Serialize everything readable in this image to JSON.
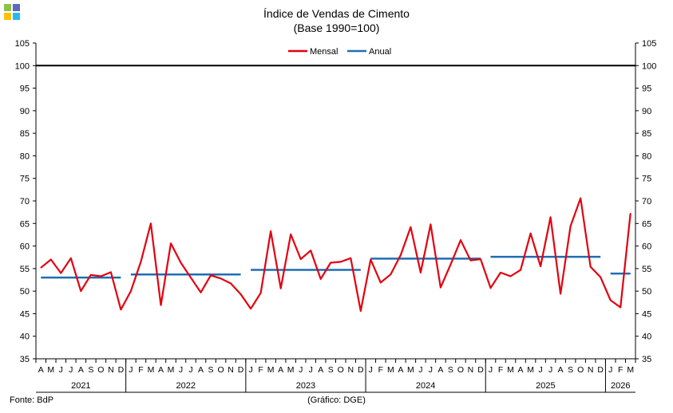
{
  "logo": {
    "colors": [
      "#8bc34a",
      "#5c6bc0",
      "#ffc107",
      "#29b6f6"
    ]
  },
  "colors": {
    "mensal": "#e3000f",
    "anual": "#1f6db3",
    "reference": "#000000",
    "axis": "#000000"
  },
  "chart_data": {
    "type": "line",
    "title": "Índice de Vendas de Cimento",
    "subtitle": "(Base 1990=100)",
    "source": "Fonte: BdP",
    "credit": "(Gráfico: DGE)",
    "legend_placement": "top-center",
    "grid": false,
    "ylim": [
      35,
      105
    ],
    "yticks": [
      35,
      40,
      45,
      50,
      55,
      60,
      65,
      70,
      75,
      80,
      85,
      90,
      95,
      100,
      105
    ],
    "reference_line": 100,
    "month_labels": [
      "A",
      "M",
      "J",
      "J",
      "A",
      "S",
      "O",
      "N",
      "D",
      "J",
      "F",
      "M",
      "A",
      "M",
      "J",
      "J",
      "A",
      "S",
      "O",
      "N",
      "D",
      "J",
      "F",
      "M",
      "A",
      "M",
      "J",
      "J",
      "A",
      "S",
      "O",
      "N",
      "D",
      "J",
      "F",
      "M",
      "A",
      "M",
      "J",
      "J",
      "A",
      "S",
      "O",
      "N",
      "D",
      "J",
      "F",
      "M",
      "A",
      "M",
      "J",
      "J",
      "A",
      "S",
      "O",
      "N",
      "D",
      "J",
      "F",
      "M"
    ],
    "years": [
      {
        "label": "2021",
        "start": 0,
        "end": 8
      },
      {
        "label": "2022",
        "start": 9,
        "end": 20
      },
      {
        "label": "2023",
        "start": 21,
        "end": 32
      },
      {
        "label": "2024",
        "start": 33,
        "end": 44
      },
      {
        "label": "2025",
        "start": 45,
        "end": 56
      },
      {
        "label": "2026",
        "start": 57,
        "end": 59
      }
    ],
    "series": [
      {
        "name": "Mensal",
        "values": [
          55.2,
          57.0,
          54.0,
          57.3,
          50.0,
          53.6,
          53.3,
          54.2,
          45.9,
          50.0,
          56.5,
          65.0,
          46.9,
          60.6,
          56.3,
          53.0,
          49.7,
          53.5,
          52.8,
          51.7,
          49.3,
          46.1,
          49.6,
          63.3,
          50.6,
          62.6,
          57.1,
          59.0,
          52.7,
          56.3,
          56.5,
          57.3,
          45.6,
          57.0,
          51.9,
          53.7,
          58.0,
          64.2,
          54.1,
          64.8,
          50.8,
          55.9,
          61.3,
          56.8,
          57.1,
          50.7,
          54.1,
          53.3,
          54.7,
          62.8,
          55.5,
          66.4,
          49.4,
          64.4,
          70.6,
          55.4,
          53.1,
          48.0,
          46.4,
          67.2
        ]
      },
      {
        "name": "Anual",
        "segments": [
          {
            "start": 0,
            "end": 8,
            "value": 53.0
          },
          {
            "start": 9,
            "end": 20,
            "value": 53.7
          },
          {
            "start": 21,
            "end": 32,
            "value": 54.7
          },
          {
            "start": 33,
            "end": 44,
            "value": 57.2
          },
          {
            "start": 45,
            "end": 56,
            "value": 57.6
          },
          {
            "start": 57,
            "end": 59,
            "value": 53.9
          }
        ]
      }
    ]
  }
}
